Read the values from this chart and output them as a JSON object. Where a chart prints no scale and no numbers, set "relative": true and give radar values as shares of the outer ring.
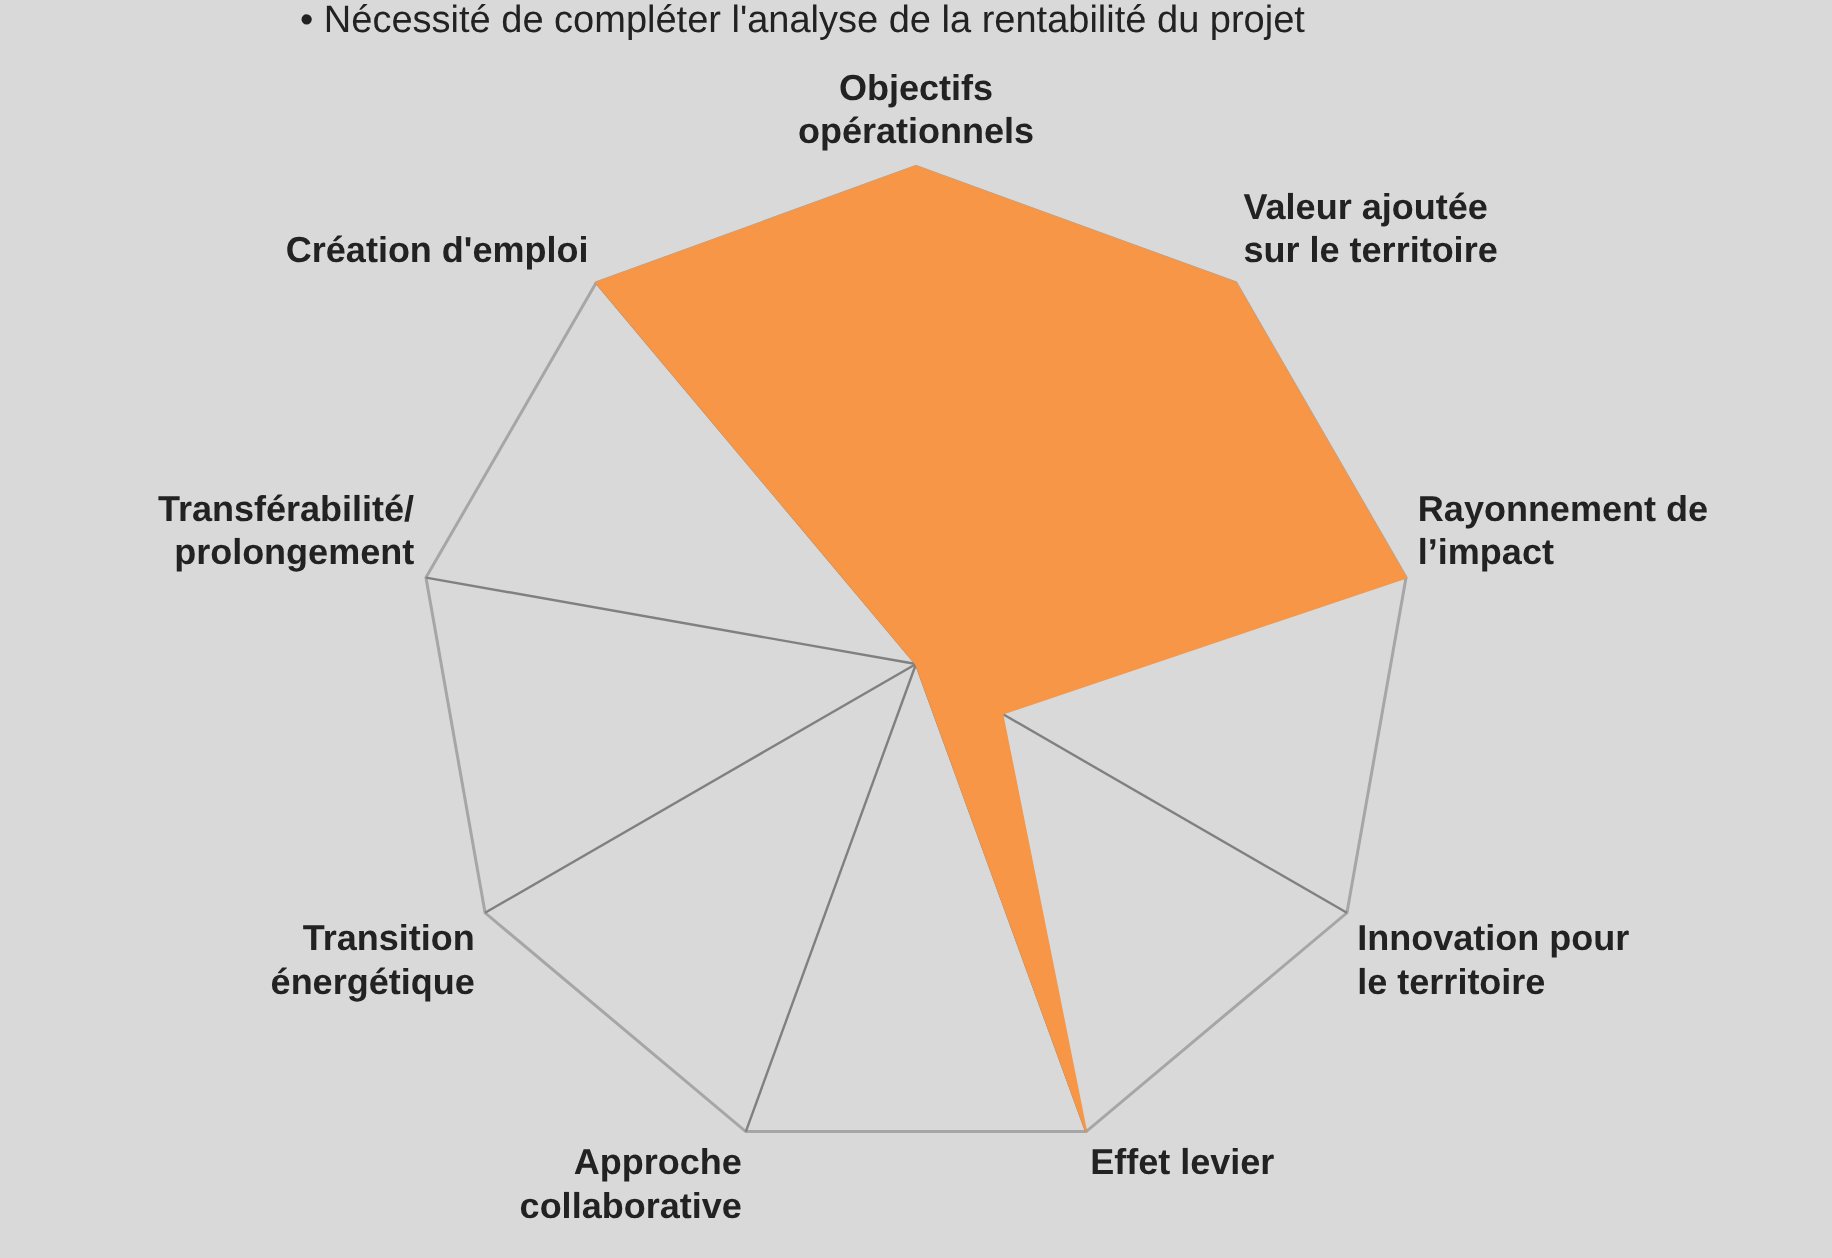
{
  "chart_data": {
    "type": "radar",
    "relative": true,
    "legend": false,
    "annotations": [
      "• Nécessité de compléter l'analyse de la rentabilité du projet"
    ],
    "categories": [
      "Objectifs opérationnels",
      "Valeur ajoutée sur le territoire",
      "Rayonnement de l’impact",
      "Innovation pour le territoire",
      "Effet levier",
      "Approche collaborative",
      "Transition énergétique",
      "Transférabilité/ prolongement",
      "Création d'emploi"
    ],
    "series": [
      {
        "color": "#f79646",
        "values": [
          1,
          1,
          1,
          0.2,
          1,
          0,
          0,
          0,
          1
        ]
      }
    ]
  }
}
